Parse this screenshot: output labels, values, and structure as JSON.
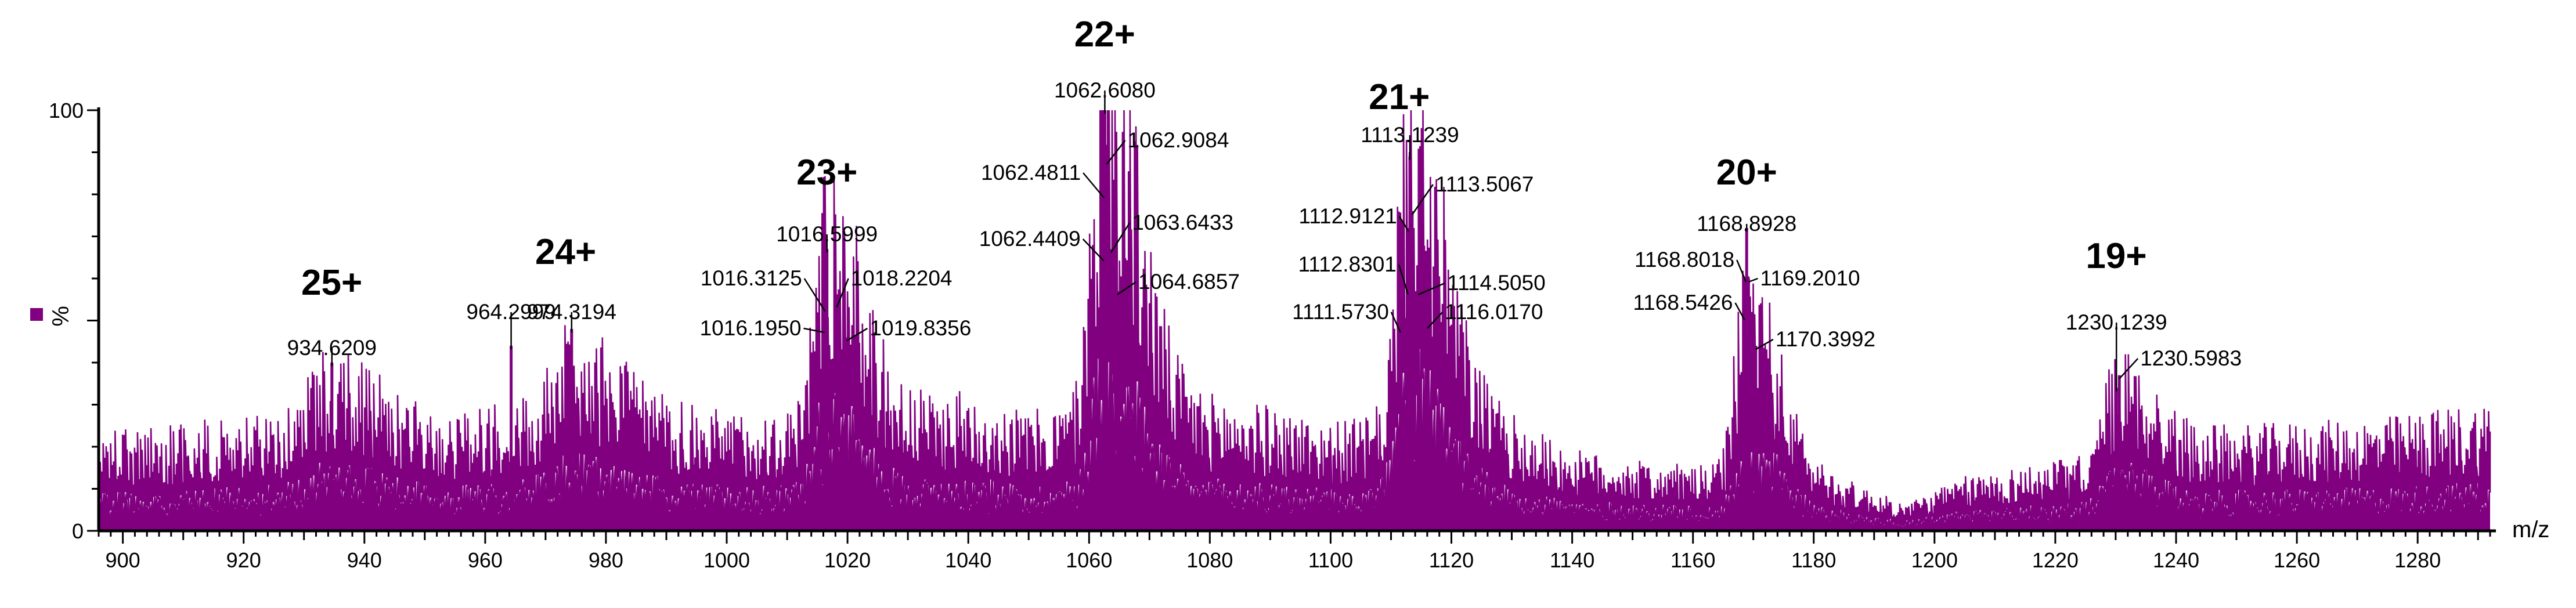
{
  "chart_data": {
    "type": "line",
    "title": "",
    "xlabel": "m/z",
    "ylabel": "%",
    "xlim": [
      896,
      1292
    ],
    "ylim": [
      0,
      100
    ],
    "x_ticks": [
      900,
      920,
      940,
      960,
      980,
      1000,
      1020,
      1040,
      1060,
      1080,
      1100,
      1120,
      1140,
      1160,
      1180,
      1200,
      1220,
      1240,
      1260,
      1280
    ],
    "y_ticks": [
      0,
      100
    ],
    "grid": false,
    "legend": "none",
    "colors": {
      "trace": "#800080",
      "axis": "#000000"
    },
    "baseline_envelope": [
      {
        "x": 896,
        "y": 18
      },
      {
        "x": 910,
        "y": 20
      },
      {
        "x": 920,
        "y": 21
      },
      {
        "x": 930,
        "y": 23
      },
      {
        "x": 950,
        "y": 20
      },
      {
        "x": 960,
        "y": 23
      },
      {
        "x": 975,
        "y": 25
      },
      {
        "x": 990,
        "y": 22
      },
      {
        "x": 1000,
        "y": 22
      },
      {
        "x": 1010,
        "y": 22
      },
      {
        "x": 1025,
        "y": 24
      },
      {
        "x": 1040,
        "y": 26
      },
      {
        "x": 1050,
        "y": 22
      },
      {
        "x": 1058,
        "y": 24
      },
      {
        "x": 1075,
        "y": 26
      },
      {
        "x": 1090,
        "y": 23
      },
      {
        "x": 1100,
        "y": 20
      },
      {
        "x": 1125,
        "y": 24
      },
      {
        "x": 1140,
        "y": 15
      },
      {
        "x": 1150,
        "y": 13
      },
      {
        "x": 1160,
        "y": 12
      },
      {
        "x": 1180,
        "y": 12
      },
      {
        "x": 1195,
        "y": 5
      },
      {
        "x": 1205,
        "y": 10
      },
      {
        "x": 1215,
        "y": 12
      },
      {
        "x": 1225,
        "y": 14
      },
      {
        "x": 1240,
        "y": 19
      },
      {
        "x": 1260,
        "y": 20
      },
      {
        "x": 1275,
        "y": 21
      },
      {
        "x": 1292,
        "y": 24
      }
    ],
    "envelopes": [
      {
        "center": 934.6,
        "height": 12,
        "width": 4
      },
      {
        "center": 974.3,
        "height": 14,
        "width": 4
      },
      {
        "center": 1016.6,
        "height": 48,
        "width": 2.5
      },
      {
        "center": 1062.6,
        "height": 78,
        "width": 2.5
      },
      {
        "center": 1113.1,
        "height": 68,
        "width": 2.5
      },
      {
        "center": 1168.9,
        "height": 42,
        "width": 2.2
      },
      {
        "center": 1230.1,
        "height": 18,
        "width": 2.5
      }
    ],
    "peaks": [
      {
        "mz": 934.6209,
        "intensity": 40,
        "label": "934.6209"
      },
      {
        "mz": 964.2999,
        "intensity": 44,
        "label": "964.2999"
      },
      {
        "mz": 974.3194,
        "intensity": 48,
        "label": "974.3194"
      },
      {
        "mz": 1016.195,
        "intensity": 48,
        "label": "1016.1950"
      },
      {
        "mz": 1016.3125,
        "intensity": 53,
        "label": "1016.3125"
      },
      {
        "mz": 1016.5999,
        "intensity": 67,
        "label": "1016.5999"
      },
      {
        "mz": 1018.2204,
        "intensity": 54,
        "label": "1018.2204"
      },
      {
        "mz": 1019.8356,
        "intensity": 46,
        "label": "1019.8356"
      },
      {
        "mz": 1062.4409,
        "intensity": 65,
        "label": "1062.4409"
      },
      {
        "mz": 1062.4811,
        "intensity": 80,
        "label": "1062.4811"
      },
      {
        "mz": 1062.608,
        "intensity": 100,
        "label": "1062.6080"
      },
      {
        "mz": 1062.9084,
        "intensity": 88,
        "label": "1062.9084"
      },
      {
        "mz": 1063.6433,
        "intensity": 67,
        "label": "1063.6433"
      },
      {
        "mz": 1064.6857,
        "intensity": 57,
        "label": "1064.6857"
      },
      {
        "mz": 1111.573,
        "intensity": 48,
        "label": "1111.5730"
      },
      {
        "mz": 1112.8301,
        "intensity": 57,
        "label": "1112.8301"
      },
      {
        "mz": 1112.9121,
        "intensity": 72,
        "label": "1112.9121"
      },
      {
        "mz": 1113.1239,
        "intensity": 89,
        "label": "1113.1239"
      },
      {
        "mz": 1113.5067,
        "intensity": 76,
        "label": "1113.5067"
      },
      {
        "mz": 1114.505,
        "intensity": 57,
        "label": "1114.5050"
      },
      {
        "mz": 1116.017,
        "intensity": 49,
        "label": "1116.0170"
      },
      {
        "mz": 1168.5426,
        "intensity": 51,
        "label": "1168.5426"
      },
      {
        "mz": 1168.8018,
        "intensity": 60,
        "label": "1168.8018"
      },
      {
        "mz": 1168.8928,
        "intensity": 72,
        "label": "1168.8928"
      },
      {
        "mz": 1169.201,
        "intensity": 60,
        "label": "1169.2010"
      },
      {
        "mz": 1170.3992,
        "intensity": 44,
        "label": "1170.3992"
      },
      {
        "mz": 1230.1239,
        "intensity": 34,
        "label": "1230.1239"
      },
      {
        "mz": 1230.5983,
        "intensity": 37,
        "label": "1230.5983"
      }
    ],
    "annotations": [
      {
        "text": "25+",
        "mz": 934.6,
        "level": 1
      },
      {
        "text": "24+",
        "mz": 974.3,
        "level": 1
      },
      {
        "text": "23+",
        "mz": 1016.6,
        "level": 1
      },
      {
        "text": "22+",
        "mz": 1062.6,
        "level": 1
      },
      {
        "text": "21+",
        "mz": 1113.1,
        "level": 1
      },
      {
        "text": "20+",
        "mz": 1168.9,
        "level": 1
      },
      {
        "text": "19+",
        "mz": 1230.1,
        "level": 1
      }
    ]
  }
}
